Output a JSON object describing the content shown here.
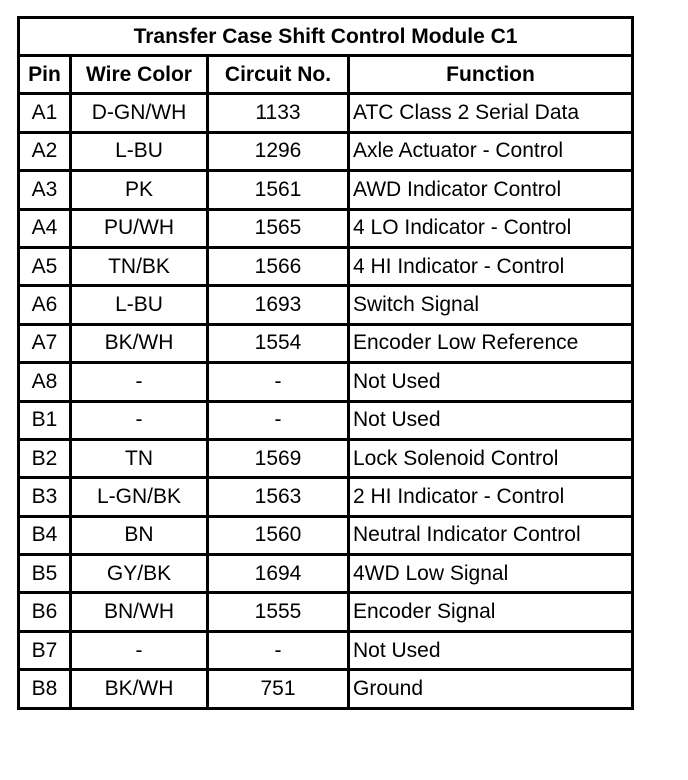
{
  "title": "Transfer Case Shift Control Module C1",
  "headers": [
    "Pin",
    "Wire Color",
    "Circuit No.",
    "Function"
  ],
  "rows": [
    [
      "A1",
      "D-GN/WH",
      "1133",
      "ATC Class 2 Serial Data"
    ],
    [
      "A2",
      "L-BU",
      "1296",
      "Axle Actuator - Control"
    ],
    [
      "A3",
      "PK",
      "1561",
      "AWD Indicator Control"
    ],
    [
      "A4",
      "PU/WH",
      "1565",
      "4 LO Indicator - Control"
    ],
    [
      "A5",
      "TN/BK",
      "1566",
      "4 HI Indicator - Control"
    ],
    [
      "A6",
      "L-BU",
      "1693",
      "Switch Signal"
    ],
    [
      "A7",
      "BK/WH",
      "1554",
      "Encoder Low Reference"
    ],
    [
      "A8",
      "-",
      "-",
      "Not Used"
    ],
    [
      "B1",
      "-",
      "-",
      "Not Used"
    ],
    [
      "B2",
      "TN",
      "1569",
      "Lock Solenoid Control"
    ],
    [
      "B3",
      "L-GN/BK",
      "1563",
      "2 HI Indicator - Control"
    ],
    [
      "B4",
      "BN",
      "1560",
      "Neutral Indicator Control"
    ],
    [
      "B5",
      "GY/BK",
      "1694",
      "4WD Low Signal"
    ],
    [
      "B6",
      "BN/WH",
      "1555",
      "Encoder Signal"
    ],
    [
      "B7",
      "-",
      "-",
      "Not Used"
    ],
    [
      "B8",
      "BK/WH",
      "751",
      "Ground"
    ]
  ]
}
